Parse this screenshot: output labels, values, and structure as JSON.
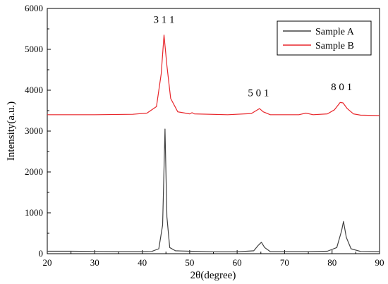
{
  "chart_data": {
    "type": "line",
    "title": "",
    "xlabel": "2θ(degree)",
    "ylabel": "Intensity(a.u.)",
    "xlim": [
      20,
      90
    ],
    "ylim": [
      0,
      6000
    ],
    "x_ticks": [
      "20",
      "30",
      "40",
      "50",
      "60",
      "70",
      "80",
      "90"
    ],
    "y_ticks": [
      "0",
      "1000",
      "2000",
      "3000",
      "4000",
      "5000",
      "6000"
    ],
    "grid": false,
    "legend_position": "top-right",
    "series": [
      {
        "name": "Sample A",
        "color": "#404040",
        "points": [
          [
            20,
            60
          ],
          [
            25,
            60
          ],
          [
            30,
            55
          ],
          [
            35,
            50
          ],
          [
            40,
            50
          ],
          [
            42,
            55
          ],
          [
            43.5,
            120
          ],
          [
            44.3,
            700
          ],
          [
            44.8,
            3050
          ],
          [
            45.2,
            900
          ],
          [
            45.8,
            150
          ],
          [
            47,
            70
          ],
          [
            55,
            45
          ],
          [
            60,
            45
          ],
          [
            63.5,
            70
          ],
          [
            64.5,
            210
          ],
          [
            65.1,
            280
          ],
          [
            65.8,
            150
          ],
          [
            67,
            50
          ],
          [
            75,
            50
          ],
          [
            79,
            60
          ],
          [
            81,
            150
          ],
          [
            82,
            560
          ],
          [
            82.4,
            790
          ],
          [
            83,
            400
          ],
          [
            84,
            120
          ],
          [
            86,
            55
          ],
          [
            90,
            50
          ]
        ]
      },
      {
        "name": "Sample B",
        "color": "#e8262b",
        "points": [
          [
            20,
            3400
          ],
          [
            30,
            3400
          ],
          [
            38,
            3410
          ],
          [
            41,
            3440
          ],
          [
            43,
            3600
          ],
          [
            44,
            4400
          ],
          [
            44.6,
            5350
          ],
          [
            45.2,
            4600
          ],
          [
            46,
            3800
          ],
          [
            47.5,
            3470
          ],
          [
            50,
            3420
          ],
          [
            50.5,
            3450
          ],
          [
            51,
            3420
          ],
          [
            58,
            3400
          ],
          [
            63,
            3430
          ],
          [
            64,
            3500
          ],
          [
            64.7,
            3550
          ],
          [
            65.5,
            3470
          ],
          [
            67,
            3400
          ],
          [
            73,
            3400
          ],
          [
            74.5,
            3440
          ],
          [
            76,
            3400
          ],
          [
            79,
            3420
          ],
          [
            80.5,
            3520
          ],
          [
            81.7,
            3700
          ],
          [
            82.3,
            3690
          ],
          [
            83.2,
            3550
          ],
          [
            84.5,
            3420
          ],
          [
            86,
            3390
          ],
          [
            90,
            3380
          ]
        ]
      }
    ],
    "annotations": [
      {
        "text": "3 1 1",
        "x": 44.6,
        "y": 5650
      },
      {
        "text": "5 0 1",
        "x": 64.5,
        "y": 3850
      },
      {
        "text": "8 0 1",
        "x": 82.0,
        "y": 4000
      }
    ]
  }
}
